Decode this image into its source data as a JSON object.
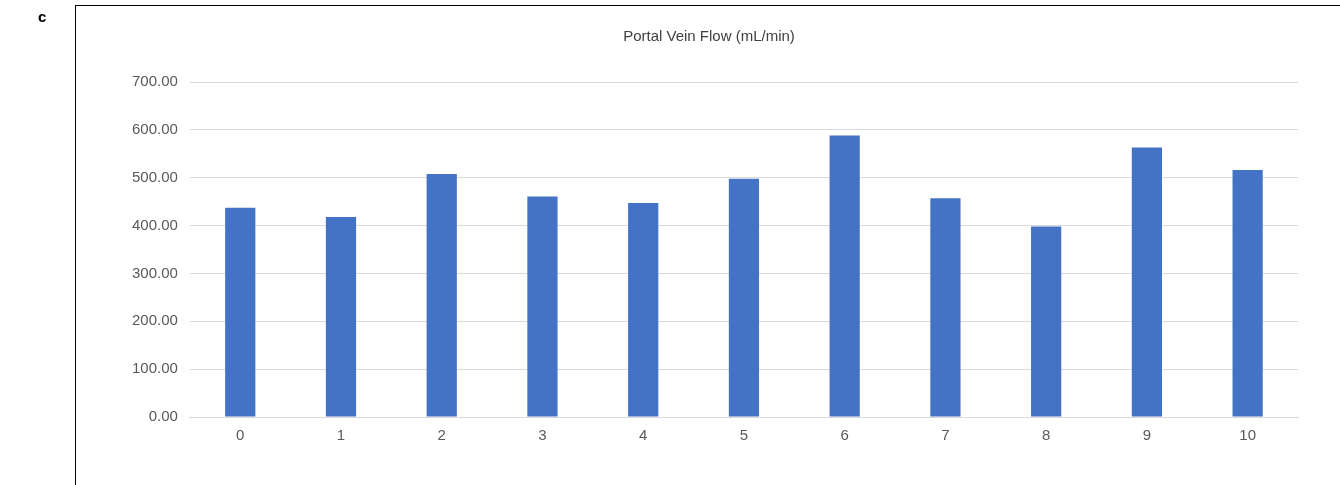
{
  "chart_data": {
    "type": "bar",
    "title": "Portal Vein Flow (mL/min)",
    "annotations": [
      "c"
    ],
    "categories": [
      "0",
      "1",
      "2",
      "3",
      "4",
      "5",
      "6",
      "7",
      "8",
      "9",
      "10"
    ],
    "values": [
      437,
      418,
      508,
      461,
      447,
      498,
      588,
      457,
      398,
      563,
      516
    ],
    "color": "#4472c4",
    "ylim": [
      0,
      700
    ],
    "yticks": [
      {
        "value": 0,
        "label": "0.00"
      },
      {
        "value": 100,
        "label": "100.00"
      },
      {
        "value": 200,
        "label": "200.00"
      },
      {
        "value": 300,
        "label": "300.00"
      },
      {
        "value": 400,
        "label": "400.00"
      },
      {
        "value": 500,
        "label": "500.00"
      },
      {
        "value": 600,
        "label": "600.00"
      },
      {
        "value": 700,
        "label": "700.00"
      }
    ],
    "grid": "y",
    "legend": false
  }
}
